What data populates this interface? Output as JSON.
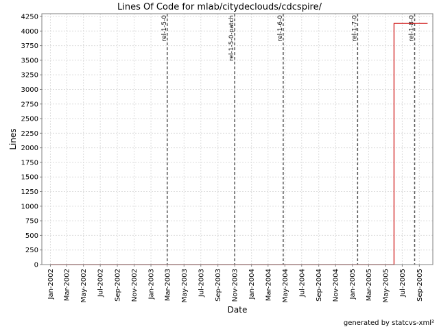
{
  "chart_data": {
    "type": "line",
    "title": "Lines Of Code for mlab/citydeclouds/cdcspire/",
    "xlabel": "Date",
    "ylabel": "Lines",
    "ylim": [
      0,
      4250
    ],
    "yticks": [
      0,
      250,
      500,
      750,
      1000,
      1250,
      1500,
      1750,
      2000,
      2250,
      2500,
      2750,
      3000,
      3250,
      3500,
      3750,
      4000,
      4250
    ],
    "xlim": [
      "2001-12-01",
      "2005-10-20"
    ],
    "xticks": [
      {
        "date": "2002-01-01",
        "label": "Jan-2002"
      },
      {
        "date": "2002-03-01",
        "label": "Mar-2002"
      },
      {
        "date": "2002-05-01",
        "label": "May-2002"
      },
      {
        "date": "2002-07-01",
        "label": "Jul-2002"
      },
      {
        "date": "2002-09-01",
        "label": "Sep-2002"
      },
      {
        "date": "2002-11-01",
        "label": "Nov-2002"
      },
      {
        "date": "2003-01-01",
        "label": "Jan-2003"
      },
      {
        "date": "2003-03-01",
        "label": "Mar-2003"
      },
      {
        "date": "2003-05-01",
        "label": "May-2003"
      },
      {
        "date": "2003-07-01",
        "label": "Jul-2003"
      },
      {
        "date": "2003-09-01",
        "label": "Sep-2003"
      },
      {
        "date": "2003-11-01",
        "label": "Nov-2003"
      },
      {
        "date": "2004-01-01",
        "label": "Jan-2004"
      },
      {
        "date": "2004-03-01",
        "label": "Mar-2004"
      },
      {
        "date": "2004-05-01",
        "label": "May-2004"
      },
      {
        "date": "2004-07-01",
        "label": "Jul-2004"
      },
      {
        "date": "2004-09-01",
        "label": "Sep-2004"
      },
      {
        "date": "2004-11-01",
        "label": "Nov-2004"
      },
      {
        "date": "2005-01-01",
        "label": "Jan-2005"
      },
      {
        "date": "2005-03-01",
        "label": "Mar-2005"
      },
      {
        "date": "2005-05-01",
        "label": "May-2005"
      },
      {
        "date": "2005-07-01",
        "label": "Jul-2005"
      },
      {
        "date": "2005-09-01",
        "label": "Sep-2005"
      }
    ],
    "series": [
      {
        "color": "#cc0000",
        "step": true,
        "points": [
          {
            "x": "2002-01-01",
            "y": 0
          },
          {
            "x": "2005-06-01",
            "y": 0
          },
          {
            "x": "2005-06-01",
            "y": 4130
          },
          {
            "x": "2005-10-01",
            "y": 4130
          }
        ]
      }
    ],
    "markers": [
      {
        "date": "2003-03-01",
        "label": "rel-1-5-0"
      },
      {
        "date": "2003-11-01",
        "label": "rel-1-5-0-patch"
      },
      {
        "date": "2004-04-25",
        "label": "rel-1-6-0"
      },
      {
        "date": "2005-01-20",
        "label": "rel-1-7-0"
      },
      {
        "date": "2005-08-15",
        "label": "rel-1-8-0"
      }
    ],
    "grid": true,
    "legend": "none"
  },
  "footer": "generated by statcvs-xml²"
}
